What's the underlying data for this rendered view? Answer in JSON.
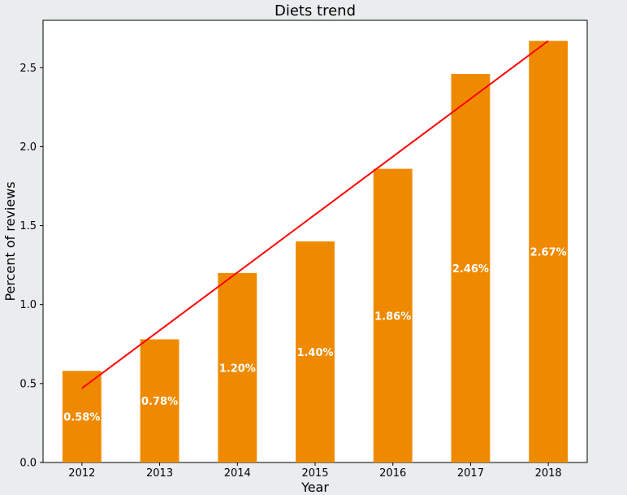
{
  "chart_data": {
    "type": "bar",
    "title": "Diets trend",
    "xlabel": "Year",
    "ylabel": "Percent of reviews",
    "categories": [
      "2012",
      "2013",
      "2014",
      "2015",
      "2016",
      "2017",
      "2018"
    ],
    "values": [
      0.58,
      0.78,
      1.2,
      1.4,
      1.86,
      2.46,
      2.67
    ],
    "data_labels": [
      "0.58%",
      "0.78%",
      "1.20%",
      "1.40%",
      "1.86%",
      "2.46%",
      "2.67%"
    ],
    "ylim": [
      0,
      2.8
    ],
    "yticks": [
      0.0,
      0.5,
      1.0,
      1.5,
      2.0,
      2.5
    ],
    "ytick_labels": [
      "0.0",
      "0.5",
      "1.0",
      "1.5",
      "2.0",
      "2.5"
    ],
    "trendline": {
      "start": 0.47,
      "end": 2.67
    },
    "grid": false,
    "colors": {
      "bar": "#ef8a00",
      "trend": "#ff0000",
      "background": "#e9edee",
      "plot_background": "#ffffff"
    }
  }
}
